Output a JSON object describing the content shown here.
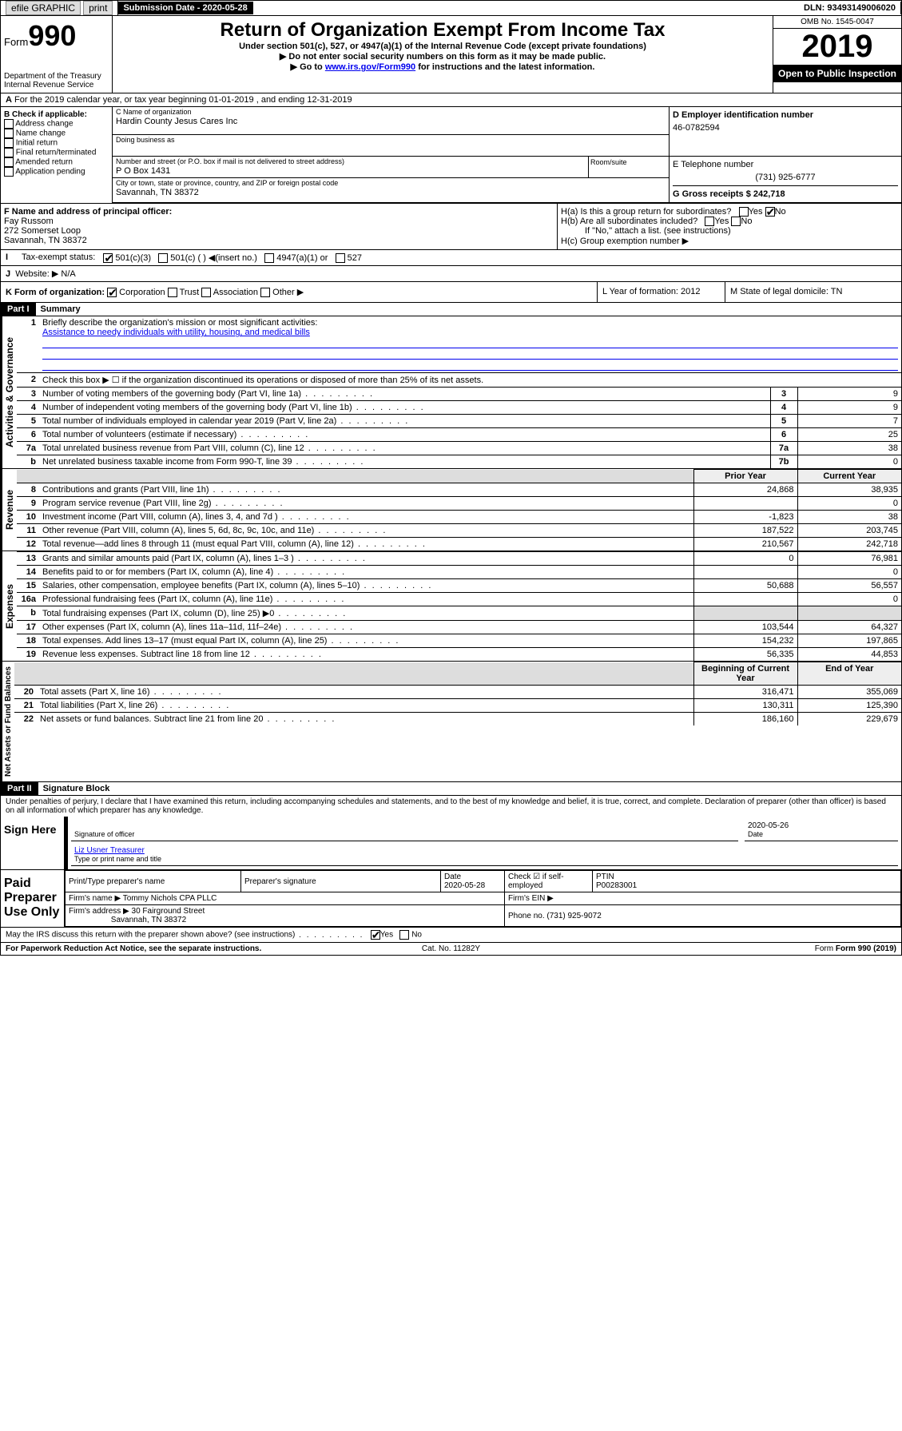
{
  "topbar": {
    "efile": "efile GRAPHIC",
    "print": "print",
    "sub_label": "Submission Date - 2020-05-28",
    "dln": "DLN: 93493149006020"
  },
  "header": {
    "form_label": "Form",
    "form_num": "990",
    "dept": "Department of the Treasury\nInternal Revenue Service",
    "title": "Return of Organization Exempt From Income Tax",
    "subtitle": "Under section 501(c), 527, or 4947(a)(1) of the Internal Revenue Code (except private foundations)",
    "warn1": "Do not enter social security numbers on this form as it may be made public.",
    "warn2_pre": "Go to ",
    "warn2_link": "www.irs.gov/Form990",
    "warn2_post": " for instructions and the latest information.",
    "omb": "OMB No. 1545-0047",
    "year": "2019",
    "openpub": "Open to Public Inspection"
  },
  "row_a": "For the 2019 calendar year, or tax year beginning 01-01-2019   , and ending 12-31-2019",
  "sec_b": {
    "label": "B Check if applicable:",
    "items": [
      "Address change",
      "Name change",
      "Initial return",
      "Final return/terminated",
      "Amended return",
      "Application pending"
    ]
  },
  "sec_c": {
    "name_lbl": "C Name of organization",
    "name": "Hardin County Jesus Cares Inc",
    "dba_lbl": "Doing business as",
    "addr_lbl": "Number and street (or P.O. box if mail is not delivered to street address)",
    "room_lbl": "Room/suite",
    "addr": "P O Box 1431",
    "city_lbl": "City or town, state or province, country, and ZIP or foreign postal code",
    "city": "Savannah, TN  38372"
  },
  "sec_d": {
    "lbl": "D Employer identification number",
    "val": "46-0782594"
  },
  "sec_e": {
    "lbl": "E Telephone number",
    "val": "(731) 925-6777"
  },
  "sec_g": {
    "lbl": "G Gross receipts $ 242,718"
  },
  "sec_f": {
    "lbl": "F  Name and address of principal officer:",
    "name": "Fay Russom",
    "addr1": "272 Somerset Loop",
    "addr2": "Savannah, TN  38372"
  },
  "sec_h": {
    "ha": "H(a)  Is this a group return for subordinates?",
    "hb": "H(b)  Are all subordinates included?",
    "hb_note": "If \"No,\" attach a list. (see instructions)",
    "hc": "H(c)  Group exemption number ▶"
  },
  "sec_i": {
    "lbl": "Tax-exempt status:",
    "opts": [
      "501(c)(3)",
      "501(c) (  ) ◀(insert no.)",
      "4947(a)(1) or",
      "527"
    ]
  },
  "sec_j": {
    "lbl": "Website: ▶",
    "val": "N/A"
  },
  "sec_k": {
    "lbl": "K Form of organization:",
    "opts": [
      "Corporation",
      "Trust",
      "Association",
      "Other ▶"
    ]
  },
  "sec_l": {
    "lbl": "L Year of formation: 2012"
  },
  "sec_m": {
    "lbl": "M State of legal domicile: TN"
  },
  "part1": {
    "hdr": "Part I",
    "title": "Summary"
  },
  "vtabs": [
    "Activities & Governance",
    "Revenue",
    "Expenses",
    "Net Assets or Fund Balances"
  ],
  "mission_q": "Briefly describe the organization's mission or most significant activities:",
  "mission": "Assistance to needy individuals with utility, housing, and medical bills",
  "line2": "Check this box ▶ ☐  if the organization discontinued its operations or disposed of more than 25% of its net assets.",
  "rows_gov": [
    {
      "n": "3",
      "t": "Number of voting members of the governing body (Part VI, line 1a)",
      "box": "3",
      "v": "9"
    },
    {
      "n": "4",
      "t": "Number of independent voting members of the governing body (Part VI, line 1b)",
      "box": "4",
      "v": "9"
    },
    {
      "n": "5",
      "t": "Total number of individuals employed in calendar year 2019 (Part V, line 2a)",
      "box": "5",
      "v": "7"
    },
    {
      "n": "6",
      "t": "Total number of volunteers (estimate if necessary)",
      "box": "6",
      "v": "25"
    },
    {
      "n": "7a",
      "t": "Total unrelated business revenue from Part VIII, column (C), line 12",
      "box": "7a",
      "v": "38"
    },
    {
      "n": "b",
      "t": "Net unrelated business taxable income from Form 990-T, line 39",
      "box": "7b",
      "v": "0"
    }
  ],
  "col_hdrs": {
    "prior": "Prior Year",
    "current": "Current Year"
  },
  "rows_rev": [
    {
      "n": "8",
      "t": "Contributions and grants (Part VIII, line 1h)",
      "p": "24,868",
      "c": "38,935"
    },
    {
      "n": "9",
      "t": "Program service revenue (Part VIII, line 2g)",
      "p": "",
      "c": "0"
    },
    {
      "n": "10",
      "t": "Investment income (Part VIII, column (A), lines 3, 4, and 7d )",
      "p": "-1,823",
      "c": "38"
    },
    {
      "n": "11",
      "t": "Other revenue (Part VIII, column (A), lines 5, 6d, 8c, 9c, 10c, and 11e)",
      "p": "187,522",
      "c": "203,745"
    },
    {
      "n": "12",
      "t": "Total revenue—add lines 8 through 11 (must equal Part VIII, column (A), line 12)",
      "p": "210,567",
      "c": "242,718"
    }
  ],
  "rows_exp": [
    {
      "n": "13",
      "t": "Grants and similar amounts paid (Part IX, column (A), lines 1–3 )",
      "p": "0",
      "c": "76,981"
    },
    {
      "n": "14",
      "t": "Benefits paid to or for members (Part IX, column (A), line 4)",
      "p": "",
      "c": "0"
    },
    {
      "n": "15",
      "t": "Salaries, other compensation, employee benefits (Part IX, column (A), lines 5–10)",
      "p": "50,688",
      "c": "56,557"
    },
    {
      "n": "16a",
      "t": "Professional fundraising fees (Part IX, column (A), line 11e)",
      "p": "",
      "c": "0"
    },
    {
      "n": "b",
      "t": "Total fundraising expenses (Part IX, column (D), line 25) ▶0",
      "p": "",
      "c": "",
      "shade": true
    },
    {
      "n": "17",
      "t": "Other expenses (Part IX, column (A), lines 11a–11d, 11f–24e)",
      "p": "103,544",
      "c": "64,327"
    },
    {
      "n": "18",
      "t": "Total expenses. Add lines 13–17 (must equal Part IX, column (A), line 25)",
      "p": "154,232",
      "c": "197,865"
    },
    {
      "n": "19",
      "t": "Revenue less expenses. Subtract line 18 from line 12",
      "p": "56,335",
      "c": "44,853"
    }
  ],
  "col_hdrs2": {
    "begin": "Beginning of Current Year",
    "end": "End of Year"
  },
  "rows_net": [
    {
      "n": "20",
      "t": "Total assets (Part X, line 16)",
      "p": "316,471",
      "c": "355,069"
    },
    {
      "n": "21",
      "t": "Total liabilities (Part X, line 26)",
      "p": "130,311",
      "c": "125,390"
    },
    {
      "n": "22",
      "t": "Net assets or fund balances. Subtract line 21 from line 20",
      "p": "186,160",
      "c": "229,679"
    }
  ],
  "part2": {
    "hdr": "Part II",
    "title": "Signature Block"
  },
  "perjury": "Under penalties of perjury, I declare that I have examined this return, including accompanying schedules and statements, and to the best of my knowledge and belief, it is true, correct, and complete. Declaration of preparer (other than officer) is based on all information of which preparer has any knowledge.",
  "sign": {
    "here": "Sign Here",
    "sig_lbl": "Signature of officer",
    "date": "2020-05-26",
    "date_lbl": "Date",
    "name": "Liz Usner Treasurer",
    "name_lbl": "Type or print name and title"
  },
  "paid": {
    "lbl": "Paid Preparer Use Only",
    "hdrs": [
      "Print/Type preparer's name",
      "Preparer's signature",
      "Date",
      "",
      "PTIN"
    ],
    "date": "2020-05-28",
    "chk": "Check ☑ if self-employed",
    "ptin": "P00283001",
    "firm_lbl": "Firm's name   ▶",
    "firm": "Tommy Nichols CPA PLLC",
    "ein_lbl": "Firm's EIN ▶",
    "addr_lbl": "Firm's address ▶",
    "addr1": "30 Fairground Street",
    "addr2": "Savannah, TN  38372",
    "phone_lbl": "Phone no. (731) 925-9072"
  },
  "discuss": "May the IRS discuss this return with the preparer shown above? (see instructions)",
  "footer": {
    "pra": "For Paperwork Reduction Act Notice, see the separate instructions.",
    "cat": "Cat. No. 11282Y",
    "form": "Form 990 (2019)"
  },
  "yes": "Yes",
  "no": "No"
}
